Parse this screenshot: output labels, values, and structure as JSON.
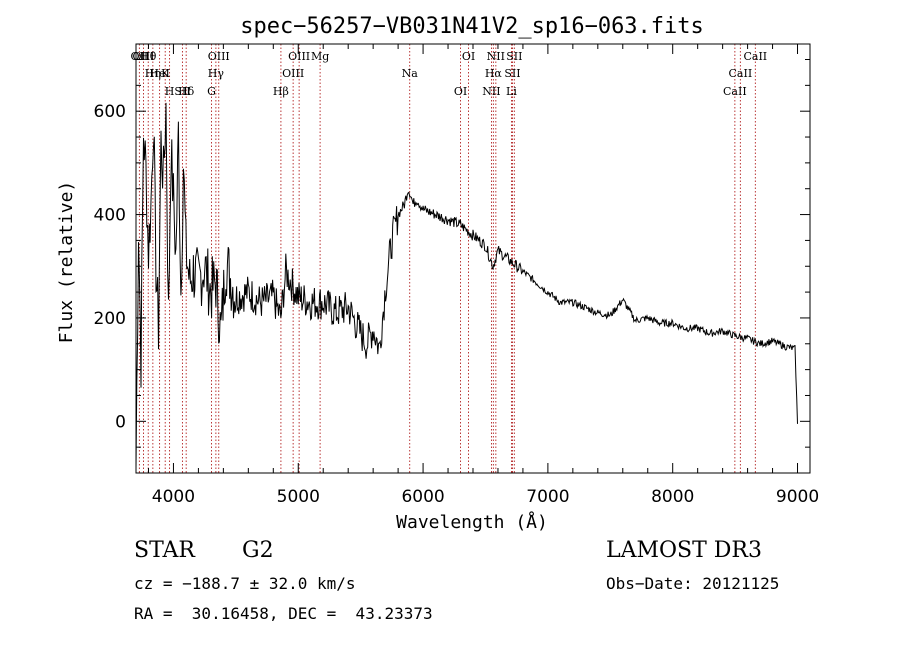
{
  "chart_data": {
    "type": "line",
    "title": "spec−56257−VB031N41V2_sp16−063.fits",
    "xlabel": "Wavelength (Å)",
    "ylabel": "Flux (relative)",
    "xlim": [
      3700,
      9100
    ],
    "ylim": [
      -100,
      730
    ],
    "x_ticks": [
      4000,
      5000,
      6000,
      7000,
      8000,
      9000
    ],
    "x_tick_labels": [
      "4000",
      "5000",
      "6000",
      "7000",
      "8000",
      "9000"
    ],
    "y_ticks": [
      0,
      200,
      400,
      600
    ],
    "y_tick_labels": [
      "0",
      "200",
      "400",
      "600"
    ],
    "series": [
      {
        "name": "flux",
        "x": [
          3700,
          3720,
          3740,
          3760,
          3780,
          3800,
          3820,
          3840,
          3860,
          3880,
          3900,
          3920,
          3940,
          3960,
          3980,
          4000,
          4020,
          4040,
          4060,
          4080,
          4100,
          4130,
          4160,
          4200,
          4250,
          4300,
          4340,
          4380,
          4420,
          4500,
          4600,
          4700,
          4800,
          4860,
          4900,
          5000,
          5100,
          5200,
          5300,
          5400,
          5500,
          5550,
          5600,
          5650,
          5700,
          5750,
          5800,
          5850,
          5880,
          5900,
          5920,
          5950,
          6000,
          6100,
          6200,
          6300,
          6400,
          6500,
          6560,
          6600,
          6700,
          6800,
          6900,
          7000,
          7100,
          7200,
          7300,
          7400,
          7500,
          7600,
          7700,
          7800,
          7900,
          8000,
          8100,
          8200,
          8300,
          8400,
          8500,
          8600,
          8700,
          8800,
          8900,
          8980,
          9000
        ],
        "y": [
          -90,
          380,
          120,
          560,
          480,
          330,
          420,
          590,
          300,
          180,
          540,
          470,
          610,
          200,
          520,
          430,
          320,
          560,
          250,
          500,
          330,
          270,
          290,
          270,
          300,
          250,
          270,
          170,
          310,
          240,
          250,
          230,
          240,
          200,
          290,
          240,
          230,
          230,
          210,
          220,
          170,
          150,
          180,
          140,
          260,
          350,
          400,
          420,
          450,
          440,
          420,
          430,
          410,
          400,
          390,
          380,
          360,
          340,
          300,
          330,
          310,
          290,
          270,
          250,
          230,
          230,
          220,
          210,
          205,
          235,
          195,
          200,
          190,
          190,
          180,
          180,
          170,
          175,
          165,
          160,
          150,
          155,
          145,
          140,
          -5
        ]
      }
    ],
    "lines": [
      {
        "label": "Hθ",
        "wavelength": 3798
      },
      {
        "label": "K",
        "wavelength": 3934
      },
      {
        "label": "Hδ",
        "wavelength": 4102
      },
      {
        "label": "OII",
        "wavelength": 3727
      },
      {
        "label": "HeI",
        "wavelength": 3889
      },
      {
        "label": "SII",
        "wavelength": 4072
      },
      {
        "label": "OIII",
        "wavelength": 3760
      },
      {
        "label": "Hη",
        "wavelength": 3835
      },
      {
        "label": "H",
        "wavelength": 3969
      },
      {
        "label": "OIII",
        "wavelength": 4363
      },
      {
        "label": "Hγ",
        "wavelength": 4340
      },
      {
        "label": "G",
        "wavelength": 4305
      },
      {
        "label": "OIII",
        "wavelength": 5007
      },
      {
        "label": "OIII",
        "wavelength": 4959
      },
      {
        "label": "Hβ",
        "wavelength": 4861
      },
      {
        "label": "Mg",
        "wavelength": 5175
      },
      {
        "label": "Na",
        "wavelength": 5893
      },
      {
        "label": "OI",
        "wavelength": 6300
      },
      {
        "label": "OI",
        "wavelength": 6364
      },
      {
        "label": "Hα",
        "wavelength": 6563
      },
      {
        "label": "NII",
        "wavelength": 6548
      },
      {
        "label": "NII",
        "wavelength": 6583
      },
      {
        "label": "SII",
        "wavelength": 6716
      },
      {
        "label": "Li",
        "wavelength": 6708
      },
      {
        "label": "SII",
        "wavelength": 6731
      },
      {
        "label": "CaII",
        "wavelength": 8542
      },
      {
        "label": "CaII",
        "wavelength": 8498
      },
      {
        "label": "CaII",
        "wavelength": 8662
      }
    ],
    "grid": false,
    "legend": "none"
  },
  "info": {
    "class_label": "STAR",
    "subclass_label": "G2",
    "survey": "LAMOST DR3",
    "redshift": "cz = −188.7 ± 32.0 km/s",
    "obs_date": "Obs−Date: 20121125",
    "coords": "RA =  30.16458, DEC =  43.23373"
  },
  "colors": {
    "line_marker": "#b22222",
    "spectrum": "#000000",
    "axes": "#000000"
  }
}
